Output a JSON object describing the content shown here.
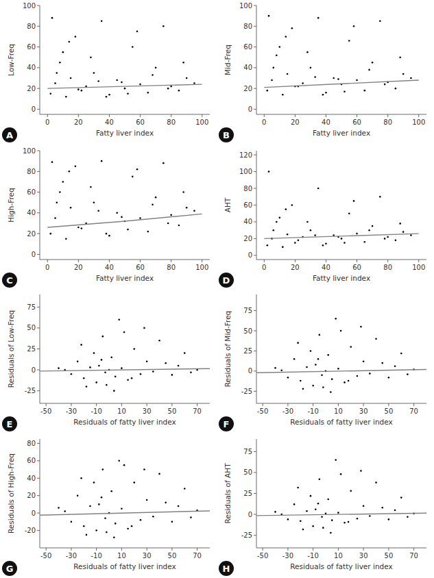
{
  "chart_data": [
    {
      "type": "scatter",
      "panel": "A",
      "x_label": "Fatty liver index",
      "y_label": "Low-Freq",
      "xlim": [
        -5,
        105
      ],
      "ylim": [
        -5,
        100
      ],
      "xticks": [
        0,
        20,
        40,
        60,
        80,
        100
      ],
      "yticks": [
        0,
        20,
        40,
        60,
        80,
        100
      ],
      "series": [
        {
          "type": "scatter",
          "color": "#000000",
          "marker": "dot",
          "x": [
            2,
            5,
            8,
            12,
            15,
            18,
            22,
            25,
            30,
            35,
            40,
            45,
            50,
            55,
            60,
            65,
            70,
            75,
            80,
            85,
            90,
            95,
            3,
            10,
            20,
            28,
            38,
            48,
            58,
            68,
            78,
            88,
            6,
            14,
            33,
            52
          ],
          "values": [
            15,
            25,
            45,
            12,
            30,
            70,
            18,
            22,
            35,
            85,
            14,
            28,
            20,
            60,
            24,
            16,
            40,
            80,
            22,
            18,
            30,
            25,
            88,
            55,
            19,
            50,
            12,
            26,
            75,
            33,
            20,
            45,
            35,
            65,
            27,
            15
          ]
        },
        {
          "type": "line",
          "color": "#808080",
          "line_style": "solid",
          "x": [
            0,
            100
          ],
          "values": [
            20,
            24
          ]
        }
      ]
    },
    {
      "type": "scatter",
      "panel": "B",
      "x_label": "Fatty liver index",
      "y_label": "Mid-Freq",
      "xlim": [
        -5,
        105
      ],
      "ylim": [
        -5,
        100
      ],
      "xticks": [
        0,
        20,
        40,
        60,
        80,
        100
      ],
      "yticks": [
        0,
        20,
        40,
        60,
        80,
        100
      ],
      "series": [
        {
          "type": "scatter",
          "color": "#000000",
          "marker": "dot",
          "x": [
            2,
            5,
            8,
            12,
            15,
            18,
            22,
            25,
            30,
            35,
            40,
            45,
            50,
            55,
            60,
            65,
            70,
            75,
            80,
            85,
            90,
            95,
            3,
            10,
            20,
            28,
            38,
            48,
            58,
            68,
            78,
            88,
            6,
            14,
            33,
            52
          ],
          "values": [
            18,
            28,
            52,
            14,
            34,
            78,
            22,
            25,
            40,
            88,
            16,
            30,
            24,
            66,
            28,
            18,
            45,
            85,
            26,
            20,
            34,
            30,
            90,
            60,
            22,
            55,
            14,
            29,
            80,
            38,
            24,
            50,
            40,
            70,
            31,
            17
          ]
        },
        {
          "type": "line",
          "color": "#808080",
          "line_style": "solid",
          "x": [
            0,
            100
          ],
          "values": [
            21,
            28
          ]
        }
      ]
    },
    {
      "type": "scatter",
      "panel": "C",
      "x_label": "Fatty liver index",
      "y_label": "High-Freq",
      "xlim": [
        -5,
        105
      ],
      "ylim": [
        -5,
        100
      ],
      "xticks": [
        0,
        20,
        40,
        60,
        80,
        100
      ],
      "yticks": [
        0,
        20,
        40,
        60,
        80,
        100
      ],
      "series": [
        {
          "type": "scatter",
          "color": "#000000",
          "marker": "dot",
          "x": [
            2,
            5,
            8,
            12,
            15,
            18,
            22,
            25,
            30,
            35,
            40,
            45,
            50,
            55,
            60,
            65,
            70,
            75,
            80,
            85,
            90,
            95,
            3,
            10,
            20,
            28,
            38,
            48,
            58,
            68,
            78,
            88,
            6,
            14,
            33,
            52
          ],
          "values": [
            20,
            35,
            60,
            15,
            45,
            85,
            25,
            30,
            50,
            90,
            18,
            40,
            32,
            75,
            35,
            22,
            55,
            88,
            38,
            28,
            45,
            42,
            89,
            70,
            26,
            65,
            20,
            36,
            82,
            48,
            30,
            60,
            50,
            80,
            42,
            24
          ]
        },
        {
          "type": "line",
          "color": "#808080",
          "line_style": "solid",
          "x": [
            0,
            50,
            100
          ],
          "values": [
            26,
            32,
            39
          ]
        }
      ]
    },
    {
      "type": "scatter",
      "panel": "D",
      "x_label": "Fatty liver index",
      "y_label": "AHT",
      "xlim": [
        -5,
        105
      ],
      "ylim": [
        -5,
        125
      ],
      "xticks": [
        0,
        20,
        40,
        60,
        80,
        100
      ],
      "yticks": [
        0,
        20,
        40,
        60,
        80,
        100,
        120
      ],
      "series": [
        {
          "type": "scatter",
          "color": "#000000",
          "marker": "dot",
          "x": [
            2,
            5,
            8,
            12,
            15,
            18,
            22,
            25,
            30,
            35,
            40,
            45,
            50,
            55,
            60,
            65,
            70,
            75,
            80,
            85,
            90,
            95,
            3,
            10,
            20,
            28,
            38,
            48,
            58,
            68,
            78,
            88,
            6,
            14,
            33,
            52
          ],
          "values": [
            12,
            20,
            40,
            10,
            25,
            60,
            18,
            22,
            30,
            80,
            14,
            24,
            20,
            50,
            26,
            16,
            35,
            70,
            22,
            18,
            28,
            24,
            100,
            45,
            15,
            40,
            12,
            22,
            65,
            30,
            20,
            38,
            30,
            55,
            24,
            15
          ]
        },
        {
          "type": "line",
          "color": "#808080",
          "line_style": "solid",
          "x": [
            0,
            100
          ],
          "values": [
            20,
            26
          ]
        }
      ]
    },
    {
      "type": "scatter",
      "panel": "E",
      "x_label": "Residuals of fatty liver index",
      "y_label": "Residuals of Low-Freq",
      "xlim": [
        -55,
        80
      ],
      "ylim": [
        -40,
        90
      ],
      "xticks": [
        -50,
        -30,
        -10,
        10,
        30,
        50,
        70
      ],
      "yticks": [
        -25,
        0,
        25,
        50,
        75
      ],
      "series": [
        {
          "type": "scatter",
          "color": "#000000",
          "marker": "dot",
          "x": [
            -40,
            -30,
            -25,
            -20,
            -15,
            -12,
            -10,
            -8,
            -5,
            -3,
            0,
            2,
            5,
            8,
            10,
            15,
            20,
            25,
            30,
            35,
            40,
            45,
            50,
            55,
            60,
            65,
            70,
            -18,
            -6,
            4,
            12,
            -22,
            -2,
            18,
            -35,
            28
          ],
          "values": [
            2,
            -5,
            10,
            -10,
            3,
            20,
            -15,
            5,
            40,
            -3,
            0,
            15,
            -8,
            60,
            2,
            -12,
            25,
            -5,
            10,
            -2,
            35,
            8,
            -6,
            5,
            20,
            -3,
            0,
            -20,
            12,
            -25,
            45,
            30,
            -18,
            -10,
            0,
            50
          ]
        },
        {
          "type": "line",
          "color": "#808080",
          "line_style": "solid",
          "x": [
            -55,
            80
          ],
          "values": [
            -1.5,
            1.5
          ]
        }
      ]
    },
    {
      "type": "scatter",
      "panel": "F",
      "x_label": "Residuals of fatty liver index",
      "y_label": "Residuals of Mid-Freq",
      "xlim": [
        -55,
        80
      ],
      "ylim": [
        -40,
        95
      ],
      "xticks": [
        -50,
        -30,
        -10,
        10,
        30,
        50,
        70
      ],
      "yticks": [
        -25,
        0,
        25,
        50,
        75
      ],
      "series": [
        {
          "type": "scatter",
          "color": "#000000",
          "marker": "dot",
          "x": [
            -40,
            -30,
            -25,
            -20,
            -15,
            -12,
            -10,
            -8,
            -5,
            -3,
            0,
            2,
            5,
            8,
            10,
            15,
            20,
            25,
            30,
            35,
            40,
            45,
            50,
            55,
            60,
            65,
            70,
            -18,
            -6,
            4,
            12,
            -22,
            -2,
            18,
            -35,
            28
          ],
          "values": [
            4,
            -8,
            15,
            -12,
            5,
            25,
            -18,
            8,
            45,
            -5,
            0,
            20,
            -10,
            65,
            3,
            -14,
            30,
            -6,
            12,
            -3,
            40,
            10,
            -8,
            6,
            22,
            -4,
            2,
            -22,
            15,
            -26,
            50,
            35,
            -20,
            -12,
            1,
            55
          ]
        },
        {
          "type": "line",
          "color": "#808080",
          "line_style": "solid",
          "x": [
            -55,
            80
          ],
          "values": [
            -2,
            2
          ]
        }
      ]
    },
    {
      "type": "scatter",
      "panel": "G",
      "x_label": "Residuals of fatty liver index",
      "y_label": "Residuals of High-Freq",
      "xlim": [
        -55,
        80
      ],
      "ylim": [
        -40,
        85
      ],
      "xticks": [
        -50,
        -30,
        -10,
        10,
        30,
        50,
        70
      ],
      "yticks": [
        -20,
        0,
        20,
        40,
        60,
        80
      ],
      "series": [
        {
          "type": "scatter",
          "color": "#000000",
          "marker": "dot",
          "x": [
            -40,
            -30,
            -25,
            -20,
            -15,
            -12,
            -10,
            -8,
            -5,
            -3,
            0,
            2,
            5,
            8,
            10,
            15,
            20,
            25,
            30,
            35,
            40,
            45,
            50,
            55,
            60,
            65,
            70,
            -18,
            -6,
            4,
            12,
            -22,
            -2,
            18,
            -35,
            28
          ],
          "values": [
            6,
            -10,
            20,
            -15,
            8,
            35,
            -20,
            10,
            50,
            -6,
            0,
            25,
            -12,
            60,
            5,
            -18,
            35,
            -8,
            15,
            -4,
            45,
            12,
            -10,
            8,
            28,
            -5,
            3,
            -25,
            18,
            -28,
            55,
            40,
            -22,
            -15,
            2,
            50
          ]
        },
        {
          "type": "line",
          "color": "#808080",
          "line_style": "solid",
          "x": [
            -55,
            80
          ],
          "values": [
            -2.5,
            2.5
          ]
        }
      ]
    },
    {
      "type": "scatter",
      "panel": "H",
      "x_label": "Residuals of fatty liver index",
      "y_label": "Residuals of AHT",
      "xlim": [
        -55,
        80
      ],
      "ylim": [
        -40,
        90
      ],
      "xticks": [
        -50,
        -30,
        -10,
        10,
        30,
        50,
        70
      ],
      "yticks": [
        -25,
        0,
        25,
        50,
        75
      ],
      "series": [
        {
          "type": "scatter",
          "color": "#000000",
          "marker": "dot",
          "x": [
            -40,
            -30,
            -25,
            -20,
            -15,
            -12,
            -10,
            -8,
            -5,
            -3,
            0,
            2,
            5,
            8,
            10,
            15,
            20,
            25,
            30,
            35,
            40,
            45,
            50,
            55,
            60,
            65,
            70,
            -18,
            -6,
            4,
            12,
            -22,
            -2,
            18,
            -35,
            28
          ],
          "values": [
            3,
            -6,
            12,
            -8,
            4,
            22,
            -14,
            6,
            42,
            -3,
            1,
            18,
            -7,
            65,
            2,
            -10,
            28,
            -5,
            10,
            -2,
            38,
            8,
            -6,
            5,
            20,
            -3,
            1,
            -18,
            13,
            -22,
            48,
            32,
            -16,
            -9,
            0,
            52
          ]
        },
        {
          "type": "line",
          "color": "#808080",
          "line_style": "solid",
          "x": [
            -55,
            80
          ],
          "values": [
            -1.5,
            1.5
          ]
        }
      ]
    }
  ]
}
